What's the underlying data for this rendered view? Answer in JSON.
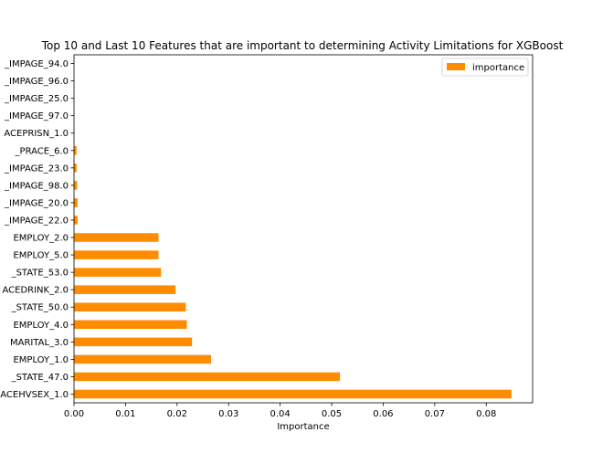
{
  "chart_data": {
    "type": "bar",
    "orientation": "horizontal",
    "title": "Top 10 and Last 10 Features that are important to determining Activity Limitations for XGBoost",
    "xlabel": "Importance",
    "ylabel": "",
    "xlim": [
      0,
      0.089
    ],
    "xticks": [
      "0.00",
      "0.01",
      "0.02",
      "0.03",
      "0.04",
      "0.05",
      "0.06",
      "0.07",
      "0.08"
    ],
    "grid": false,
    "legend_position": "top-right",
    "bar_color": "#ff8c00",
    "categories": [
      "ACEHVSEX_1.0",
      "_STATE_47.0",
      "EMPLOY_1.0",
      "MARITAL_3.0",
      "EMPLOY_4.0",
      "_STATE_50.0",
      "ACEDRINK_2.0",
      "_STATE_53.0",
      "EMPLOY_5.0",
      "EMPLOY_2.0",
      "_IMPAGE_22.0",
      "_IMPAGE_20.0",
      "_IMPAGE_98.0",
      "_IMPAGE_23.0",
      "_PRACE_6.0",
      "ACEPRISN_1.0",
      "_IMPAGE_97.0",
      "_IMPAGE_25.0",
      "_IMPAGE_96.0",
      "_IMPAGE_94.0"
    ],
    "series": [
      {
        "name": "importance",
        "values": [
          0.0849,
          0.0516,
          0.0266,
          0.0229,
          0.0219,
          0.0217,
          0.0197,
          0.0169,
          0.0164,
          0.0164,
          0.0007,
          0.0007,
          0.0006,
          0.0005,
          0.0005,
          0.0,
          0.0,
          0.0,
          0.0,
          0.0
        ]
      }
    ]
  }
}
